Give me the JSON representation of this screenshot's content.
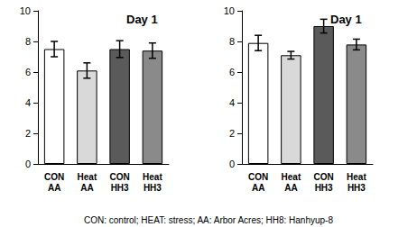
{
  "chart_data": [
    {
      "type": "bar",
      "title": "Day 1",
      "categories": [
        "CON\nAA",
        "Heat\nAA",
        "CON\nHH3",
        "Heat\nHH3"
      ],
      "values": [
        7.5,
        6.1,
        7.5,
        7.4
      ],
      "errors": [
        0.5,
        0.5,
        0.55,
        0.5
      ],
      "colors": [
        "#ffffff",
        "#d9d9d9",
        "#5a5a5a",
        "#8a8a8a"
      ],
      "ylim": [
        0,
        10
      ],
      "yticks": [
        0,
        2,
        4,
        6,
        8,
        10
      ],
      "grid": false
    },
    {
      "type": "bar",
      "title": "Day 1",
      "categories": [
        "CON\nAA",
        "Heat\nAA",
        "CON\nHH3",
        "Heat\nHH3"
      ],
      "values": [
        7.9,
        7.1,
        9.0,
        7.8
      ],
      "errors": [
        0.5,
        0.25,
        0.45,
        0.35
      ],
      "colors": [
        "#ffffff",
        "#d9d9d9",
        "#5a5a5a",
        "#8a8a8a"
      ],
      "ylim": [
        0,
        10
      ],
      "yticks": [
        0,
        2,
        4,
        6,
        8,
        10
      ],
      "grid": false
    }
  ],
  "caption": "CON: control; HEAT: stress; AA: Arbor Acres; HH8: Hanhyup-8"
}
